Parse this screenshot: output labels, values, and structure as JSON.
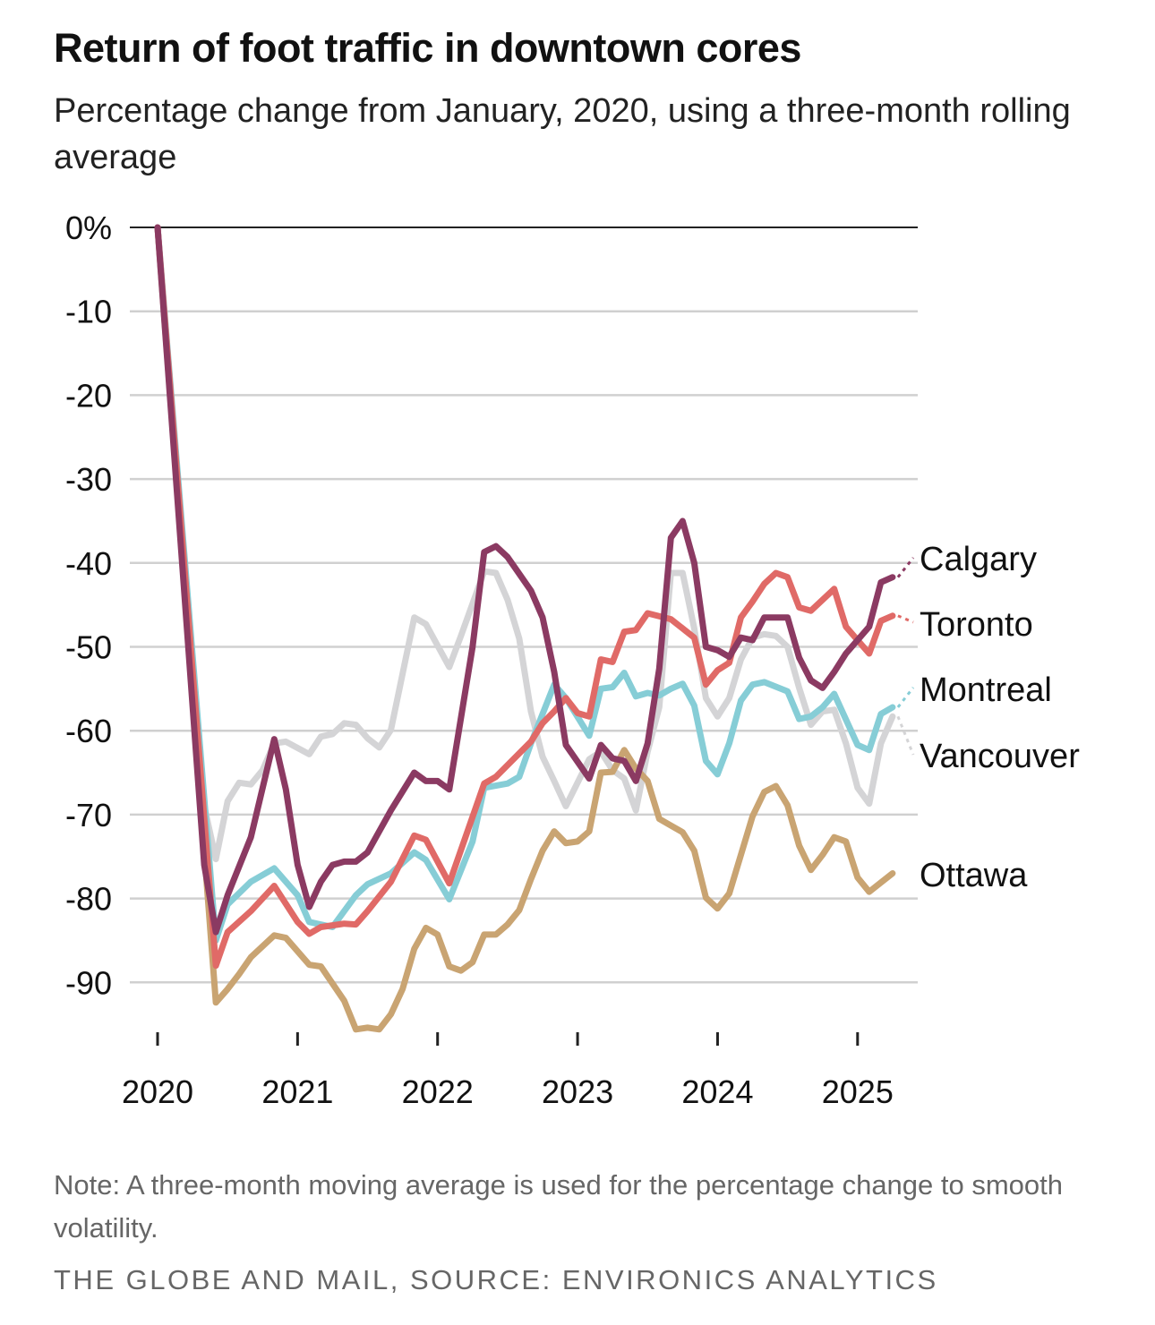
{
  "title": "Return of foot traffic in downtown cores",
  "subtitle": "Percentage change from January, 2020, using a three-month rolling average",
  "note": "Note: A three-month moving average is used for the percentage change to smooth volatility.",
  "source": "THE GLOBE AND MAIL, SOURCE: ENVIRONICS ANALYTICS",
  "chart_data": {
    "type": "line",
    "title": "Return of foot traffic in downtown cores",
    "xlabel": "",
    "ylabel": "Percentage change from January 2020",
    "x_units": "months since January 2020",
    "xlim": [
      0,
      63
    ],
    "ylim": [
      -96,
      0
    ],
    "y_ticks": [
      0,
      -10,
      -20,
      -30,
      -40,
      -50,
      -60,
      -70,
      -80,
      -90
    ],
    "y_tick_labels": [
      "0%",
      "-10",
      "-20",
      "-30",
      "-40",
      "-50",
      "-60",
      "-70",
      "-80",
      "-90"
    ],
    "x_ticks": [
      0,
      12,
      24,
      36,
      48,
      60
    ],
    "x_tick_labels": [
      "2020",
      "2021",
      "2022",
      "2023",
      "2024",
      "2025"
    ],
    "grid": true,
    "legend": "direct labels at right",
    "series": [
      {
        "name": "Vancouver",
        "color": "#d4d4d6",
        "points": [
          [
            0,
            0
          ],
          [
            4,
            -69
          ],
          [
            5,
            -75.3
          ],
          [
            6,
            -68.4
          ],
          [
            7,
            -66.2
          ],
          [
            8,
            -66.4
          ],
          [
            9,
            -64.7
          ],
          [
            10,
            -61.5
          ],
          [
            11,
            -61.3
          ],
          [
            13,
            -62.8
          ],
          [
            14,
            -60.7
          ],
          [
            15,
            -60.4
          ],
          [
            16,
            -59.1
          ],
          [
            17,
            -59.3
          ],
          [
            18,
            -60.9
          ],
          [
            19,
            -62
          ],
          [
            20,
            -59.9
          ],
          [
            22,
            -46.5
          ],
          [
            23,
            -47.3
          ],
          [
            25,
            -52.4
          ],
          [
            26,
            -48.7
          ],
          [
            28,
            -41
          ],
          [
            29,
            -41.2
          ],
          [
            30,
            -44.4
          ],
          [
            31,
            -49
          ],
          [
            32,
            -57.7
          ],
          [
            33,
            -63.1
          ],
          [
            34,
            -66
          ],
          [
            35,
            -69
          ],
          [
            37,
            -63.4
          ],
          [
            38,
            -62.5
          ],
          [
            39,
            -64.7
          ],
          [
            40,
            -65.7
          ],
          [
            41,
            -69.5
          ],
          [
            42,
            -62.5
          ],
          [
            43,
            -57.2
          ],
          [
            44,
            -41.2
          ],
          [
            45,
            -41.2
          ],
          [
            46,
            -47.8
          ],
          [
            47,
            -56.1
          ],
          [
            48,
            -58.3
          ],
          [
            49,
            -56.1
          ],
          [
            50,
            -51.5
          ],
          [
            51,
            -48.9
          ],
          [
            52,
            -48.5
          ],
          [
            53,
            -48.7
          ],
          [
            54,
            -50
          ],
          [
            55,
            -54.9
          ],
          [
            56,
            -59.3
          ],
          [
            57,
            -57.7
          ],
          [
            58,
            -57.5
          ],
          [
            59,
            -61.5
          ],
          [
            60,
            -66.8
          ],
          [
            61,
            -68.7
          ],
          [
            62,
            -61.5
          ],
          [
            63,
            -58.3
          ]
        ]
      },
      {
        "name": "Ottawa",
        "color": "#c9a472",
        "points": [
          [
            0,
            0
          ],
          [
            4,
            -74.3
          ],
          [
            5,
            -92.4
          ],
          [
            6,
            -90.8
          ],
          [
            7,
            -89
          ],
          [
            8,
            -87
          ],
          [
            10,
            -84.4
          ],
          [
            11,
            -84.7
          ],
          [
            13,
            -87.9
          ],
          [
            14,
            -88.1
          ],
          [
            16,
            -92.2
          ],
          [
            17,
            -95.6
          ],
          [
            18,
            -95.4
          ],
          [
            19,
            -95.6
          ],
          [
            20,
            -93.8
          ],
          [
            21,
            -90.8
          ],
          [
            22,
            -86
          ],
          [
            23,
            -83.5
          ],
          [
            24,
            -84.3
          ],
          [
            25,
            -88.1
          ],
          [
            26,
            -88.6
          ],
          [
            27,
            -87.6
          ],
          [
            28,
            -84.3
          ],
          [
            29,
            -84.3
          ],
          [
            30,
            -83.1
          ],
          [
            31,
            -81.4
          ],
          [
            32,
            -77.7
          ],
          [
            33,
            -74.3
          ],
          [
            34,
            -72
          ],
          [
            35,
            -73.4
          ],
          [
            36,
            -73.2
          ],
          [
            37,
            -72
          ],
          [
            38,
            -65
          ],
          [
            39,
            -64.9
          ],
          [
            40,
            -62.3
          ],
          [
            41,
            -64.5
          ],
          [
            42,
            -66
          ],
          [
            43,
            -70.5
          ],
          [
            44,
            -71.3
          ],
          [
            45,
            -72.1
          ],
          [
            46,
            -74.3
          ],
          [
            47,
            -79.9
          ],
          [
            48,
            -81.2
          ],
          [
            49,
            -79.4
          ],
          [
            50,
            -74.8
          ],
          [
            51,
            -70.2
          ],
          [
            52,
            -67.3
          ],
          [
            53,
            -66.6
          ],
          [
            54,
            -68.9
          ],
          [
            55,
            -73.7
          ],
          [
            56,
            -76.6
          ],
          [
            57,
            -74.8
          ],
          [
            58,
            -72.7
          ],
          [
            59,
            -73.2
          ],
          [
            60,
            -77.5
          ],
          [
            61,
            -79.2
          ],
          [
            62,
            -78.1
          ],
          [
            63,
            -77
          ]
        ]
      },
      {
        "name": "Montreal",
        "color": "#86cdd6",
        "points": [
          [
            0,
            0
          ],
          [
            5,
            -85
          ],
          [
            6,
            -80.7
          ],
          [
            8,
            -78
          ],
          [
            10,
            -76.4
          ],
          [
            12,
            -79.6
          ],
          [
            13,
            -82.8
          ],
          [
            15,
            -83.4
          ],
          [
            17,
            -79.6
          ],
          [
            18,
            -78.3
          ],
          [
            20,
            -77
          ],
          [
            22,
            -74.5
          ],
          [
            23,
            -75.4
          ],
          [
            25,
            -80.1
          ],
          [
            27,
            -73.2
          ],
          [
            28,
            -66.8
          ],
          [
            30,
            -66.3
          ],
          [
            31,
            -65.5
          ],
          [
            32,
            -61.5
          ],
          [
            34,
            -54.5
          ],
          [
            35,
            -56.1
          ],
          [
            37,
            -60.6
          ],
          [
            38,
            -55
          ],
          [
            39,
            -54.8
          ],
          [
            40,
            -53.1
          ],
          [
            41,
            -55.9
          ],
          [
            42,
            -55.5
          ],
          [
            43,
            -55.8
          ],
          [
            44,
            -55
          ],
          [
            45,
            -54.4
          ],
          [
            46,
            -57
          ],
          [
            47,
            -63.6
          ],
          [
            48,
            -65.2
          ],
          [
            49,
            -61.5
          ],
          [
            50,
            -56.4
          ],
          [
            51,
            -54.5
          ],
          [
            52,
            -54.2
          ],
          [
            54,
            -55.3
          ],
          [
            55,
            -58.6
          ],
          [
            56,
            -58.3
          ],
          [
            57,
            -57.2
          ],
          [
            58,
            -55.6
          ],
          [
            60,
            -61.7
          ],
          [
            61,
            -62.3
          ],
          [
            62,
            -58
          ],
          [
            63,
            -57.2
          ]
        ]
      },
      {
        "name": "Toronto",
        "color": "#e06a67",
        "points": [
          [
            0,
            0
          ],
          [
            5,
            -88
          ],
          [
            6,
            -84
          ],
          [
            8,
            -81.5
          ],
          [
            10,
            -78.5
          ],
          [
            12,
            -82.8
          ],
          [
            13,
            -84.2
          ],
          [
            14,
            -83.4
          ],
          [
            16,
            -83
          ],
          [
            17,
            -83.1
          ],
          [
            18,
            -81.5
          ],
          [
            20,
            -78
          ],
          [
            22,
            -72.5
          ],
          [
            23,
            -73
          ],
          [
            25,
            -78.2
          ],
          [
            28,
            -66.3
          ],
          [
            29,
            -65.5
          ],
          [
            32,
            -61.3
          ],
          [
            33,
            -59.1
          ],
          [
            34,
            -57.7
          ],
          [
            35,
            -56.1
          ],
          [
            36,
            -57.9
          ],
          [
            37,
            -58.3
          ],
          [
            38,
            -51.5
          ],
          [
            39,
            -51.8
          ],
          [
            40,
            -48.2
          ],
          [
            41,
            -48
          ],
          [
            42,
            -46
          ],
          [
            44,
            -46.7
          ],
          [
            46,
            -48.9
          ],
          [
            47,
            -54.5
          ],
          [
            48,
            -52.8
          ],
          [
            49,
            -51.9
          ],
          [
            50,
            -46.5
          ],
          [
            51,
            -44.6
          ],
          [
            52,
            -42.5
          ],
          [
            53,
            -41.2
          ],
          [
            54,
            -41.7
          ],
          [
            55,
            -45.3
          ],
          [
            56,
            -45.7
          ],
          [
            58,
            -43.1
          ],
          [
            59,
            -47.6
          ],
          [
            61,
            -50.8
          ],
          [
            62,
            -46.9
          ],
          [
            63,
            -46.3
          ]
        ]
      },
      {
        "name": "Calgary",
        "color": "#8b3a62",
        "points": [
          [
            0,
            0
          ],
          [
            4,
            -76
          ],
          [
            5,
            -84
          ],
          [
            6,
            -79.6
          ],
          [
            8,
            -72.7
          ],
          [
            10,
            -61
          ],
          [
            11,
            -67
          ],
          [
            12,
            -76
          ],
          [
            13,
            -81
          ],
          [
            14,
            -78
          ],
          [
            15,
            -76
          ],
          [
            16,
            -75.6
          ],
          [
            17,
            -75.6
          ],
          [
            18,
            -74.5
          ],
          [
            20,
            -69.5
          ],
          [
            22,
            -65
          ],
          [
            23,
            -66
          ],
          [
            24,
            -66
          ],
          [
            25,
            -67
          ],
          [
            27,
            -50
          ],
          [
            28,
            -38.7
          ],
          [
            29,
            -38
          ],
          [
            30,
            -39.3
          ],
          [
            32,
            -43.3
          ],
          [
            33,
            -46.5
          ],
          [
            34,
            -53
          ],
          [
            35,
            -61.7
          ],
          [
            37,
            -65.7
          ],
          [
            38,
            -61.7
          ],
          [
            39,
            -63.3
          ],
          [
            40,
            -63.6
          ],
          [
            41,
            -66
          ],
          [
            42,
            -61.5
          ],
          [
            43,
            -52.6
          ],
          [
            44,
            -37
          ],
          [
            45,
            -35
          ],
          [
            46,
            -40
          ],
          [
            47,
            -50
          ],
          [
            48,
            -50.4
          ],
          [
            49,
            -51.2
          ],
          [
            50,
            -48.9
          ],
          [
            51,
            -49.2
          ],
          [
            52,
            -46.5
          ],
          [
            54,
            -46.5
          ],
          [
            55,
            -51.3
          ],
          [
            56,
            -54
          ],
          [
            57,
            -54.9
          ],
          [
            58,
            -53
          ],
          [
            59,
            -50.8
          ],
          [
            61,
            -47.6
          ],
          [
            62,
            -42.3
          ],
          [
            63,
            -41.7
          ]
        ]
      }
    ],
    "labels": {
      "Calgary": "Calgary",
      "Toronto": "Toronto",
      "Montreal": "Montreal",
      "Vancouver": "Vancouver",
      "Ottawa": "Ottawa"
    }
  }
}
